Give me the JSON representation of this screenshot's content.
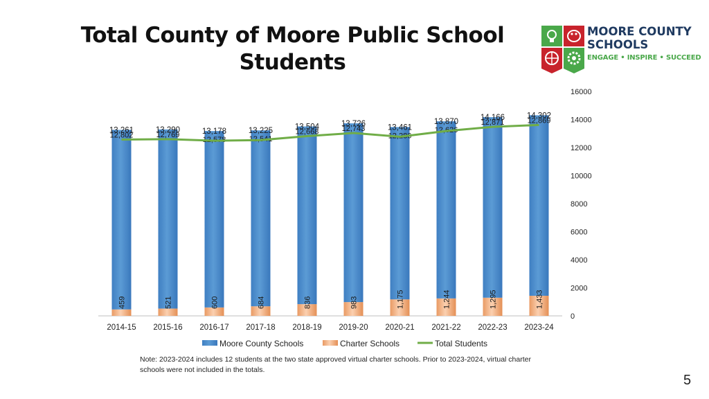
{
  "slide": {
    "title": "Total County of Moore Public School Students",
    "note": "Note:  2023-2024 includes 12  students at the two state approved virtual charter schools.  Prior to 2023-2024, virtual charter schools were not included in the totals.",
    "page_number": "5"
  },
  "logo": {
    "name_line1": "MOORE COUNTY",
    "name_line2": "SCHOOLS",
    "tagline": "ENGAGE • INSPIRE • SUCCEED",
    "icons": [
      "lightbulb-icon",
      "palette-icon",
      "basketball-icon",
      "gear-icon"
    ],
    "colors": {
      "red": "#c8232c",
      "green": "#4aa84a",
      "navy": "#1f3a60"
    }
  },
  "chart_data": {
    "type": "bar",
    "stacked": true,
    "categories": [
      "2014-15",
      "2015-16",
      "2016-17",
      "2017-18",
      "2018-19",
      "2019-20",
      "2020-21",
      "2021-22",
      "2022-23",
      "2023-24"
    ],
    "series": [
      {
        "name": "Moore County Schools",
        "kind": "bar",
        "color": "#5b9bd5",
        "values": [
          12802,
          12769,
          12578,
          12541,
          12668,
          12743,
          12286,
          12626,
          12871,
          12869
        ],
        "labels": [
          "12,802",
          "12,769",
          "12,578",
          "12,541",
          "12,668",
          "12,743",
          "12,286",
          "12,626",
          "12,871",
          "12,869"
        ]
      },
      {
        "name": "Charter Schools",
        "kind": "bar",
        "color": "#f4b183",
        "values": [
          459,
          521,
          600,
          684,
          836,
          983,
          1175,
          1244,
          1295,
          1433
        ],
        "labels": [
          "459",
          "521",
          "600",
          "684",
          "836",
          "983",
          "1,175",
          "1,244",
          "1,295",
          "1,433"
        ]
      },
      {
        "name": "Total Students",
        "kind": "line",
        "color": "#70ad47",
        "values": [
          13261,
          13290,
          13178,
          13225,
          13504,
          13726,
          13461,
          13870,
          14166,
          14302
        ],
        "labels": [
          "13,261",
          "13,290",
          "13,178",
          "13,225",
          "13,504",
          "13,726",
          "13,461",
          "13,870",
          "14,166",
          "14,302"
        ]
      }
    ],
    "y_axis": {
      "position": "right",
      "min": 0,
      "max": 16000,
      "step": 2000,
      "ticks": [
        "0",
        "2000",
        "4000",
        "6000",
        "8000",
        "10000",
        "12000",
        "14000",
        "16000"
      ]
    },
    "legend": "bottom",
    "grid": false
  }
}
